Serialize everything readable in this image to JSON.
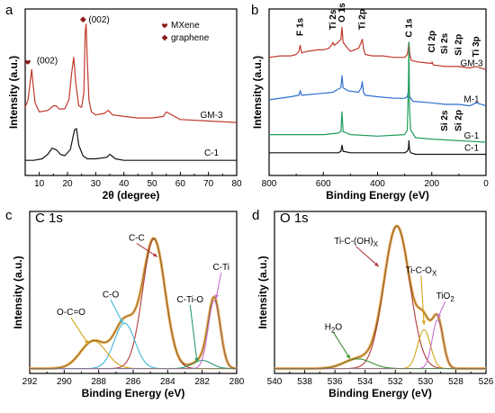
{
  "chart_data": [
    {
      "panel": "a",
      "type": "line",
      "title": "",
      "xlabel": "2θ (degree)",
      "ylabel": "Intensity (a.u.)",
      "xlim": [
        5,
        80
      ],
      "xticks": [
        10,
        20,
        30,
        40,
        50,
        60,
        70,
        80
      ],
      "legend": {
        "placement": "top-right",
        "entries": [
          {
            "marker": "heart",
            "label": "MXene",
            "color": "#8b1a1a"
          },
          {
            "marker": "diamond",
            "label": "graphene",
            "color": "#8b1a1a"
          }
        ]
      },
      "annotations": [
        {
          "marker": "heart",
          "text": "(002)",
          "x": 7.5
        },
        {
          "marker": "diamond",
          "text": "(002)",
          "x": 26.5
        }
      ],
      "series": [
        {
          "name": "GM-3",
          "color": "#c0392b",
          "x": [
            5,
            6,
            6.8,
            7.3,
            7.8,
            8.5,
            10,
            13,
            15,
            16,
            17,
            19,
            20.5,
            21.5,
            22.2,
            23,
            24,
            25,
            25.8,
            26.3,
            26.6,
            27,
            27.6,
            28.5,
            30,
            33,
            34.5,
            36,
            40,
            45,
            50,
            54,
            55,
            60,
            70,
            80
          ],
          "y": [
            0.45,
            0.5,
            0.62,
            0.7,
            0.6,
            0.48,
            0.42,
            0.43,
            0.46,
            0.46,
            0.44,
            0.44,
            0.5,
            0.68,
            0.78,
            0.6,
            0.46,
            0.45,
            0.55,
            0.95,
            1.0,
            0.78,
            0.5,
            0.42,
            0.4,
            0.41,
            0.43,
            0.4,
            0.39,
            0.38,
            0.38,
            0.39,
            0.42,
            0.37,
            0.36,
            0.35
          ]
        },
        {
          "name": "C-1",
          "color": "#111111",
          "x": [
            5,
            8,
            11,
            13,
            14.5,
            16,
            17.5,
            19,
            21,
            22.5,
            23.2,
            24,
            25.5,
            27,
            30,
            34,
            35,
            37,
            40,
            50,
            60,
            70,
            80
          ],
          "y": [
            0.1,
            0.1,
            0.11,
            0.14,
            0.18,
            0.17,
            0.14,
            0.13,
            0.17,
            0.3,
            0.31,
            0.2,
            0.13,
            0.11,
            0.11,
            0.12,
            0.14,
            0.11,
            0.1,
            0.1,
            0.1,
            0.1,
            0.1
          ]
        }
      ]
    },
    {
      "panel": "b",
      "type": "line",
      "title": "",
      "xlabel": "Binding Energy (eV)",
      "ylabel": "Intensity (a.u.)",
      "xlim": [
        800,
        0
      ],
      "xticks": [
        800,
        600,
        400,
        200,
        0
      ],
      "peak_labels": [
        {
          "text": "F 1s",
          "x": 685
        },
        {
          "text": "Ti 2s",
          "x": 564
        },
        {
          "text": "O 1s",
          "x": 531
        },
        {
          "text": "Ti 2p",
          "x": 456
        },
        {
          "text": "C 1s",
          "x": 284
        },
        {
          "text": "Cl 2p",
          "x": 199
        },
        {
          "text": "Si 2s",
          "x": 153
        },
        {
          "text": "Si 2p",
          "x": 102
        },
        {
          "text": "Ti 3p",
          "x": 36
        }
      ],
      "peak_labels_g1": [
        {
          "text": "Si 2s",
          "x": 153
        },
        {
          "text": "Si 2p",
          "x": 102
        }
      ],
      "series": [
        {
          "name": "GM-3",
          "color": "#c0392b",
          "x": [
            800,
            760,
            720,
            700,
            690,
            685,
            680,
            660,
            620,
            600,
            580,
            570,
            564,
            560,
            545,
            535,
            531,
            527,
            515,
            500,
            470,
            460,
            456,
            452,
            445,
            420,
            380,
            340,
            300,
            290,
            286,
            284,
            281,
            275,
            250,
            200,
            199,
            195,
            150,
            100,
            60,
            36,
            20,
            0
          ],
          "y": [
            0.78,
            0.79,
            0.79,
            0.8,
            0.82,
            0.86,
            0.81,
            0.82,
            0.83,
            0.83,
            0.84,
            0.86,
            0.88,
            0.86,
            0.88,
            0.9,
            0.98,
            0.88,
            0.85,
            0.82,
            0.84,
            0.88,
            0.9,
            0.84,
            0.8,
            0.79,
            0.79,
            0.78,
            0.78,
            0.8,
            0.85,
            0.88,
            0.8,
            0.76,
            0.75,
            0.74,
            0.75,
            0.73,
            0.72,
            0.72,
            0.71,
            0.72,
            0.71,
            0.7
          ]
        },
        {
          "name": "M-1",
          "color": "#2e6fce",
          "x": [
            800,
            720,
            690,
            685,
            680,
            620,
            565,
            545,
            535,
            531,
            527,
            510,
            470,
            460,
            456,
            452,
            445,
            400,
            340,
            300,
            290,
            284,
            281,
            270,
            200,
            150,
            100,
            60,
            36,
            0
          ],
          "y": [
            0.5,
            0.52,
            0.53,
            0.56,
            0.53,
            0.54,
            0.55,
            0.57,
            0.58,
            0.66,
            0.58,
            0.56,
            0.55,
            0.58,
            0.62,
            0.55,
            0.53,
            0.52,
            0.51,
            0.51,
            0.52,
            0.58,
            0.52,
            0.49,
            0.48,
            0.47,
            0.47,
            0.46,
            0.48,
            0.46
          ]
        },
        {
          "name": "G-1",
          "color": "#1e9b5a",
          "x": [
            800,
            600,
            545,
            535,
            531,
            527,
            500,
            400,
            300,
            290,
            286,
            284,
            282,
            278,
            260,
            200,
            100,
            0
          ],
          "y": [
            0.27,
            0.27,
            0.28,
            0.29,
            0.42,
            0.29,
            0.27,
            0.26,
            0.27,
            0.3,
            0.6,
            0.88,
            0.45,
            0.3,
            0.25,
            0.24,
            0.23,
            0.22
          ]
        },
        {
          "name": "C-1",
          "color": "#111111",
          "x": [
            800,
            600,
            545,
            535,
            531,
            527,
            500,
            400,
            300,
            290,
            286,
            284,
            282,
            278,
            260,
            200,
            100,
            0
          ],
          "y": [
            0.15,
            0.15,
            0.15,
            0.16,
            0.2,
            0.16,
            0.15,
            0.15,
            0.15,
            0.16,
            0.18,
            0.23,
            0.17,
            0.15,
            0.14,
            0.14,
            0.14,
            0.14
          ]
        }
      ]
    },
    {
      "panel": "c",
      "type": "line",
      "title": "C 1s",
      "xlabel": "Binding Energy (eV)",
      "ylabel": "Intensity (a.u.)",
      "xlim": [
        292,
        280
      ],
      "xticks": [
        292,
        290,
        288,
        286,
        284,
        282,
        280
      ],
      "components": [
        {
          "name": "C-C",
          "color": "#b03a3a",
          "center": 284.8,
          "height": 0.8,
          "width": 0.65
        },
        {
          "name": "C-O",
          "color": "#3fb6d6",
          "center": 286.5,
          "height": 0.28,
          "width": 0.6
        },
        {
          "name": "O-C=O",
          "color": "#d4a317",
          "center": 288.3,
          "height": 0.17,
          "width": 0.75
        },
        {
          "name": "C-Ti-O",
          "color": "#2a9d6a",
          "center": 282.0,
          "height": 0.05,
          "width": 0.55
        },
        {
          "name": "C-Ti",
          "color": "#c46fd1",
          "center": 281.3,
          "height": 0.42,
          "width": 0.35
        }
      ],
      "baseline": 0.03,
      "labels": [
        {
          "text": "C-C",
          "x": 285.8,
          "y": 0.82,
          "arrow_to": [
            284.6,
            0.72
          ]
        },
        {
          "text": "C-O",
          "x": 287.3,
          "y": 0.47,
          "arrow_to": [
            286.6,
            0.31
          ]
        },
        {
          "text": "O-C=O",
          "x": 289.6,
          "y": 0.36,
          "arrow_to": [
            288.6,
            0.18
          ]
        },
        {
          "text": "C-Ti-O",
          "x": 282.7,
          "y": 0.44,
          "arrow_to": [
            282.3,
            0.07
          ]
        },
        {
          "text": "C-Ti",
          "x": 280.9,
          "y": 0.64,
          "arrow_to": [
            281.2,
            0.46
          ]
        }
      ]
    },
    {
      "panel": "d",
      "type": "line",
      "title": "O 1s",
      "xlabel": "Binding Energy (eV)",
      "ylabel": "Intensity (a.u.)",
      "xlim": [
        540,
        526
      ],
      "xticks": [
        540,
        538,
        536,
        534,
        532,
        530,
        528,
        526
      ],
      "components": [
        {
          "name": "Ti-C-(OH)x",
          "color": "#b03a3a",
          "center": 531.9,
          "height": 0.88,
          "width": 0.85
        },
        {
          "name": "Ti-C-Ox",
          "color": "#d4a317",
          "center": 530.1,
          "height": 0.24,
          "width": 0.42
        },
        {
          "name": "TiO2",
          "color": "#c46fd1",
          "center": 529.2,
          "height": 0.3,
          "width": 0.36
        },
        {
          "name": "H2O",
          "color": "#3a8f2e",
          "center": 534.5,
          "height": 0.06,
          "width": 0.9
        }
      ],
      "baseline": 0.03,
      "labels": [
        {
          "text": "Ti-C-(OH)",
          "sub": "X",
          "x": 534.6,
          "y": 0.8,
          "arrow_to": [
            533.1,
            0.66
          ]
        },
        {
          "text": "Ti-C-O",
          "sub": "X",
          "x": 530.3,
          "y": 0.62,
          "arrow_to": [
            530.1,
            0.3
          ]
        },
        {
          "text": "TiO",
          "sub": "2",
          "x": 528.7,
          "y": 0.46,
          "arrow_to": [
            529.2,
            0.34
          ]
        },
        {
          "text": "H",
          "sub": "2",
          "text2": "O",
          "x": 536.1,
          "y": 0.27,
          "arrow_to": [
            535.0,
            0.09
          ]
        }
      ]
    }
  ]
}
